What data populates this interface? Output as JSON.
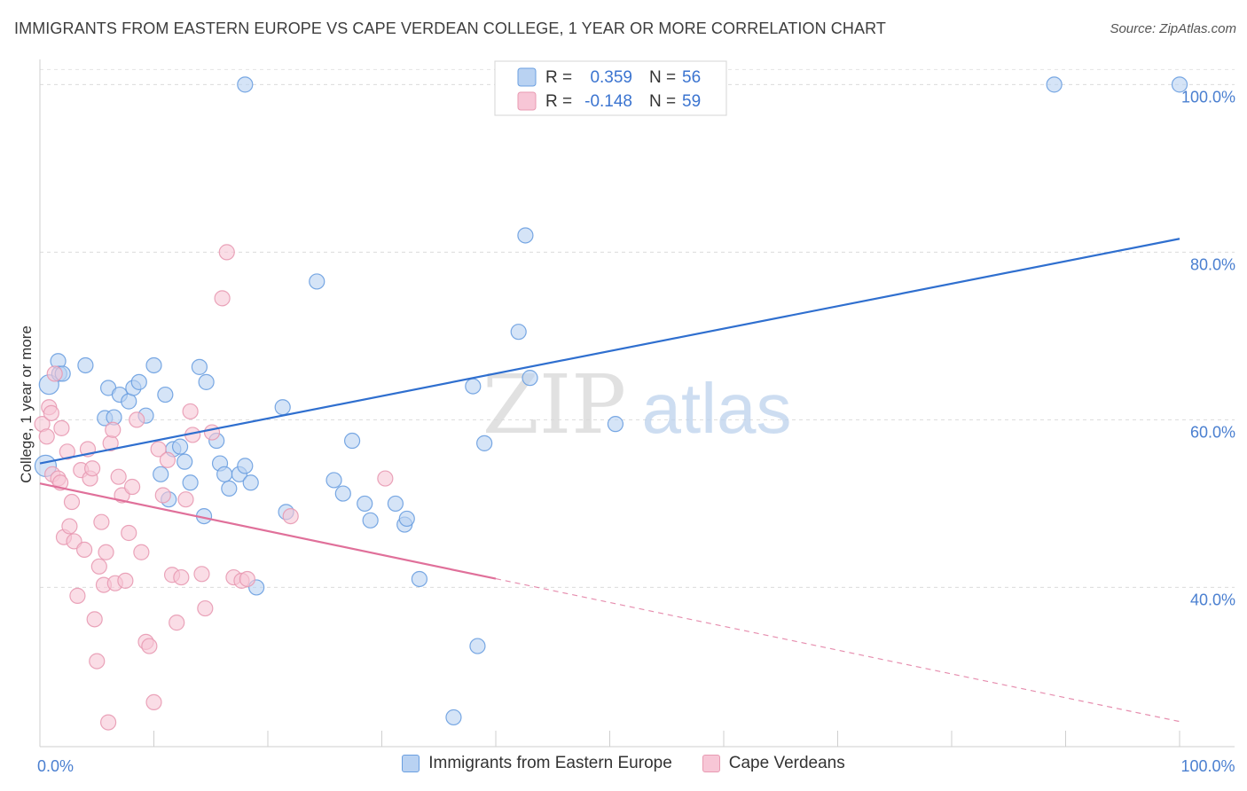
{
  "title": "IMMIGRANTS FROM EASTERN EUROPE VS CAPE VERDEAN COLLEGE, 1 YEAR OR MORE CORRELATION CHART",
  "source": "Source: ZipAtlas.com",
  "watermark": {
    "zip": "ZIP",
    "atlas": "atlas"
  },
  "chart_data": {
    "type": "scatter",
    "title": "IMMIGRANTS FROM EASTERN EUROPE VS CAPE VERDEAN COLLEGE, 1 YEAR OR MORE CORRELATION CHART",
    "xlabel": "",
    "ylabel": "College, 1 year or more",
    "xlim": [
      0,
      100
    ],
    "ylim": [
      21,
      103
    ],
    "x_tick_labels": [
      {
        "value": 0,
        "label": "0.0%"
      },
      {
        "value": 100,
        "label": "100.0%"
      }
    ],
    "y_tick_labels": [
      {
        "value": 40,
        "label": "40.0%"
      },
      {
        "value": 60,
        "label": "60.0%"
      },
      {
        "value": 80,
        "label": "80.0%"
      },
      {
        "value": 100,
        "label": "100.0%"
      }
    ],
    "grid": true,
    "legend_position": "top-center",
    "series": [
      {
        "name": "Immigrants from Eastern Europe",
        "color": "#6a9fe0",
        "fill": "#b9d2f2",
        "r_label": "R =",
        "r_value": "0.359",
        "n_label": "N =",
        "n_value": "56",
        "trend": {
          "x0": 0,
          "y0": 54.8,
          "x1": 100,
          "y1": 81.6,
          "color": "#2f6fcf",
          "dashed_from": null
        },
        "points": [
          [
            0.5,
            54.5
          ],
          [
            0.8,
            64.2
          ],
          [
            1.6,
            67.0
          ],
          [
            1.7,
            65.5
          ],
          [
            2.0,
            65.5
          ],
          [
            4.0,
            66.5
          ],
          [
            6.0,
            63.8
          ],
          [
            5.7,
            60.2
          ],
          [
            6.5,
            60.3
          ],
          [
            7.0,
            63.0
          ],
          [
            7.8,
            62.2
          ],
          [
            8.2,
            63.8
          ],
          [
            8.7,
            64.5
          ],
          [
            9.3,
            60.5
          ],
          [
            10.0,
            66.5
          ],
          [
            10.6,
            53.5
          ],
          [
            11.0,
            63.0
          ],
          [
            11.3,
            50.5
          ],
          [
            11.7,
            56.5
          ],
          [
            12.3,
            56.8
          ],
          [
            12.7,
            55.0
          ],
          [
            13.2,
            52.5
          ],
          [
            14.0,
            66.3
          ],
          [
            14.4,
            48.5
          ],
          [
            15.5,
            57.5
          ],
          [
            15.8,
            54.8
          ],
          [
            16.2,
            53.5
          ],
          [
            14.6,
            64.5
          ],
          [
            16.6,
            51.8
          ],
          [
            17.5,
            53.5
          ],
          [
            18.0,
            54.5
          ],
          [
            18.5,
            52.5
          ],
          [
            18.0,
            100.0
          ],
          [
            19.0,
            40.0
          ],
          [
            21.3,
            61.5
          ],
          [
            24.3,
            76.5
          ],
          [
            21.6,
            49.0
          ],
          [
            25.8,
            52.8
          ],
          [
            27.4,
            57.5
          ],
          [
            26.6,
            51.2
          ],
          [
            28.5,
            50.0
          ],
          [
            29.0,
            48.0
          ],
          [
            31.2,
            50.0
          ],
          [
            32.0,
            47.5
          ],
          [
            32.2,
            48.2
          ],
          [
            33.3,
            41.0
          ],
          [
            36.3,
            24.5
          ],
          [
            38.0,
            64.0
          ],
          [
            38.4,
            33.0
          ],
          [
            39.0,
            57.2
          ],
          [
            42.0,
            70.5
          ],
          [
            43.0,
            65.0
          ],
          [
            42.6,
            82.0
          ],
          [
            50.5,
            59.5
          ],
          [
            89.0,
            100.0
          ],
          [
            100.0,
            100.0
          ]
        ]
      },
      {
        "name": "Cape Verdeans",
        "color": "#e89ab2",
        "fill": "#f7c6d6",
        "r_label": "R =",
        "r_value": "-0.148",
        "n_label": "N =",
        "n_value": "59",
        "trend": {
          "x0": 0,
          "y0": 52.4,
          "x1": 100,
          "y1": 24.0,
          "color": "#e0709a",
          "dashed_from": 40
        },
        "points": [
          [
            0.2,
            59.5
          ],
          [
            0.6,
            58.0
          ],
          [
            0.8,
            61.5
          ],
          [
            1.0,
            60.8
          ],
          [
            1.1,
            53.5
          ],
          [
            1.3,
            65.5
          ],
          [
            1.6,
            53.0
          ],
          [
            1.8,
            52.5
          ],
          [
            1.9,
            59.0
          ],
          [
            2.1,
            46.0
          ],
          [
            2.4,
            56.2
          ],
          [
            2.6,
            47.3
          ],
          [
            2.8,
            50.2
          ],
          [
            3.0,
            45.5
          ],
          [
            3.3,
            39.0
          ],
          [
            3.6,
            54.0
          ],
          [
            3.9,
            44.5
          ],
          [
            4.2,
            56.5
          ],
          [
            4.4,
            53.0
          ],
          [
            4.6,
            54.2
          ],
          [
            4.8,
            36.2
          ],
          [
            5.0,
            31.2
          ],
          [
            5.2,
            42.5
          ],
          [
            5.4,
            47.8
          ],
          [
            5.6,
            40.3
          ],
          [
            5.8,
            44.2
          ],
          [
            6.0,
            23.9
          ],
          [
            6.2,
            57.2
          ],
          [
            6.4,
            58.8
          ],
          [
            6.6,
            40.5
          ],
          [
            6.9,
            53.2
          ],
          [
            7.2,
            51.0
          ],
          [
            7.5,
            40.8
          ],
          [
            7.8,
            46.5
          ],
          [
            8.1,
            52.0
          ],
          [
            8.5,
            60.0
          ],
          [
            8.9,
            44.2
          ],
          [
            9.3,
            33.5
          ],
          [
            9.6,
            33.0
          ],
          [
            10.0,
            26.3
          ],
          [
            10.4,
            56.5
          ],
          [
            10.8,
            51.0
          ],
          [
            11.2,
            55.2
          ],
          [
            11.6,
            41.5
          ],
          [
            12.0,
            35.8
          ],
          [
            12.4,
            41.2
          ],
          [
            12.8,
            50.5
          ],
          [
            13.4,
            58.2
          ],
          [
            13.2,
            61.0
          ],
          [
            14.2,
            41.6
          ],
          [
            14.5,
            37.5
          ],
          [
            15.1,
            58.5
          ],
          [
            16.0,
            74.5
          ],
          [
            16.4,
            80.0
          ],
          [
            17.0,
            41.2
          ],
          [
            17.7,
            40.8
          ],
          [
            18.2,
            41.0
          ],
          [
            22.0,
            48.5
          ],
          [
            30.3,
            53.0
          ]
        ]
      }
    ]
  }
}
